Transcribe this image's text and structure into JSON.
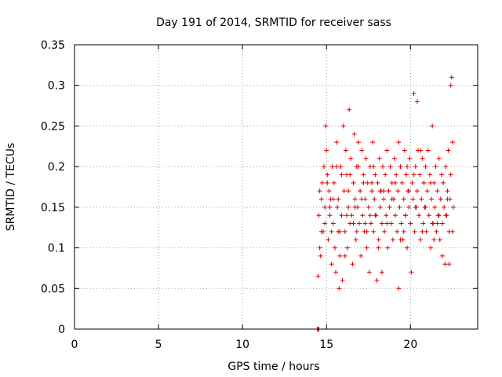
{
  "chart_data": {
    "type": "scatter",
    "title": "Day 191 of 2014, SRMTID for receiver sass",
    "xlabel": "GPS time / hours",
    "ylabel": "SRMTID / TECUs",
    "xlim": [
      0,
      24
    ],
    "ylim": [
      0,
      0.35
    ],
    "xticks": [
      0,
      5,
      10,
      15,
      20
    ],
    "xtick_labels": [
      "0",
      "5",
      "10",
      "15",
      "20"
    ],
    "yticks": [
      0,
      0.05,
      0.1,
      0.15,
      0.2,
      0.25,
      0.3,
      0.35
    ],
    "ytick_labels": [
      "0",
      "0.05",
      "0.1",
      "0.15",
      "0.2",
      "0.25",
      "0.3",
      "0.35"
    ],
    "grid": true,
    "marker": "plus",
    "color": "#e00000",
    "series": [
      {
        "name": "SRMTID",
        "x": [
          14.45,
          14.5,
          14.55,
          14.48,
          14.52,
          14.5,
          14.55,
          14.6,
          14.65,
          14.7,
          14.75,
          14.8,
          14.85,
          14.9,
          14.95,
          15.0,
          15.05,
          15.1,
          15.15,
          15.2,
          15.25,
          15.3,
          15.35,
          15.4,
          15.45,
          15.5,
          15.55,
          15.6,
          15.65,
          15.7,
          15.75,
          15.8,
          15.85,
          15.9,
          15.95,
          16.0,
          16.05,
          16.1,
          16.15,
          16.2,
          16.25,
          16.3,
          16.35,
          16.4,
          16.45,
          16.5,
          16.55,
          16.6,
          16.65,
          16.7,
          16.75,
          16.8,
          16.85,
          16.9,
          16.95,
          17.0,
          17.05,
          17.1,
          17.15,
          17.2,
          17.25,
          17.3,
          17.35,
          17.4,
          17.45,
          17.5,
          17.55,
          17.6,
          17.65,
          17.7,
          17.75,
          17.8,
          17.85,
          17.9,
          17.95,
          18.0,
          18.05,
          18.1,
          18.15,
          18.2,
          18.25,
          18.3,
          18.35,
          18.4,
          18.45,
          18.5,
          18.55,
          18.6,
          18.65,
          18.7,
          18.75,
          18.8,
          18.85,
          18.9,
          18.95,
          19.0,
          19.05,
          19.1,
          19.15,
          19.2,
          19.25,
          19.3,
          19.35,
          19.4,
          19.45,
          19.5,
          19.55,
          19.6,
          19.65,
          19.7,
          19.75,
          19.8,
          19.85,
          19.9,
          19.95,
          20.0,
          20.05,
          20.1,
          20.15,
          20.2,
          20.25,
          20.3,
          20.35,
          20.4,
          20.45,
          20.5,
          20.55,
          20.6,
          20.65,
          20.7,
          20.75,
          20.8,
          20.85,
          20.9,
          20.95,
          21.0,
          21.05,
          21.1,
          21.15,
          21.2,
          21.25,
          21.3,
          21.35,
          21.4,
          21.45,
          21.5,
          21.55,
          21.6,
          21.65,
          21.7,
          21.75,
          21.8,
          21.85,
          21.9,
          21.95,
          22.0,
          22.05,
          22.1,
          22.15,
          22.2,
          22.25,
          22.3,
          22.35,
          22.4,
          22.45,
          22.5,
          22.55,
          14.6,
          14.9,
          15.05,
          15.3,
          15.6,
          15.8,
          16.1,
          16.3,
          16.6,
          16.9,
          17.1,
          17.4,
          17.7,
          17.9,
          18.1,
          18.3,
          18.6,
          18.9,
          19.1,
          19.4,
          19.7,
          19.9,
          20.2,
          20.4,
          20.7,
          20.9,
          21.2,
          21.4,
          21.7,
          21.9,
          22.2,
          22.4,
          15.2,
          16.4,
          17.6,
          18.4,
          19.6,
          20.6,
          21.6,
          22.3,
          14.7,
          15.4,
          15.9,
          16.7,
          17.3,
          17.8,
          18.7,
          19.3,
          19.8,
          20.3,
          20.8,
          21.3,
          21.8,
          22.1,
          22.5,
          15.7,
          16.2,
          16.8,
          17.2,
          18.2
        ],
        "y": [
          0.0,
          0.0,
          0.0,
          0.0,
          0.0,
          0.065,
          0.14,
          0.17,
          0.09,
          0.16,
          0.18,
          0.12,
          0.2,
          0.15,
          0.25,
          0.22,
          0.19,
          0.11,
          0.17,
          0.14,
          0.16,
          0.12,
          0.2,
          0.13,
          0.18,
          0.1,
          0.07,
          0.23,
          0.15,
          0.12,
          0.05,
          0.09,
          0.2,
          0.14,
          0.06,
          0.25,
          0.17,
          0.12,
          0.22,
          0.19,
          0.1,
          0.15,
          0.27,
          0.13,
          0.21,
          0.14,
          0.08,
          0.18,
          0.24,
          0.16,
          0.11,
          0.2,
          0.15,
          0.23,
          0.13,
          0.17,
          0.09,
          0.22,
          0.14,
          0.19,
          0.12,
          0.16,
          0.21,
          0.1,
          0.18,
          0.15,
          0.07,
          0.2,
          0.13,
          0.17,
          0.23,
          0.12,
          0.16,
          0.19,
          0.14,
          0.06,
          0.18,
          0.11,
          0.21,
          0.15,
          0.17,
          0.13,
          0.2,
          0.16,
          0.12,
          0.19,
          0.14,
          0.22,
          0.1,
          0.17,
          0.15,
          0.2,
          0.13,
          0.18,
          0.11,
          0.16,
          0.21,
          0.14,
          0.19,
          0.12,
          0.17,
          0.23,
          0.15,
          0.2,
          0.13,
          0.18,
          0.11,
          0.16,
          0.22,
          0.14,
          0.19,
          0.1,
          0.17,
          0.15,
          0.21,
          0.13,
          0.07,
          0.18,
          0.16,
          0.29,
          0.12,
          0.2,
          0.15,
          0.17,
          0.22,
          0.14,
          0.19,
          0.11,
          0.16,
          0.21,
          0.13,
          0.18,
          0.15,
          0.2,
          0.12,
          0.17,
          0.22,
          0.14,
          0.19,
          0.1,
          0.16,
          0.25,
          0.13,
          0.18,
          0.15,
          0.2,
          0.12,
          0.17,
          0.14,
          0.21,
          0.11,
          0.16,
          0.19,
          0.13,
          0.18,
          0.15,
          0.08,
          0.2,
          0.14,
          0.17,
          0.22,
          0.12,
          0.16,
          0.19,
          0.31,
          0.23,
          0.15,
          0.1,
          0.13,
          0.18,
          0.08,
          0.2,
          0.12,
          0.09,
          0.17,
          0.13,
          0.2,
          0.16,
          0.12,
          0.18,
          0.14,
          0.1,
          0.07,
          0.13,
          0.16,
          0.18,
          0.11,
          0.14,
          0.17,
          0.19,
          0.28,
          0.12,
          0.15,
          0.18,
          0.11,
          0.14,
          0.09,
          0.16,
          0.3,
          0.15,
          0.19,
          0.14,
          0.17,
          0.12,
          0.22,
          0.13,
          0.08,
          0.12,
          0.16,
          0.19,
          0.15,
          0.13,
          0.2,
          0.17,
          0.05,
          0.2,
          0.15,
          0.18,
          0.13,
          0.16,
          0.14,
          0.12,
          0.16,
          0.14,
          0.12,
          0.18,
          0.17
        ]
      }
    ]
  }
}
